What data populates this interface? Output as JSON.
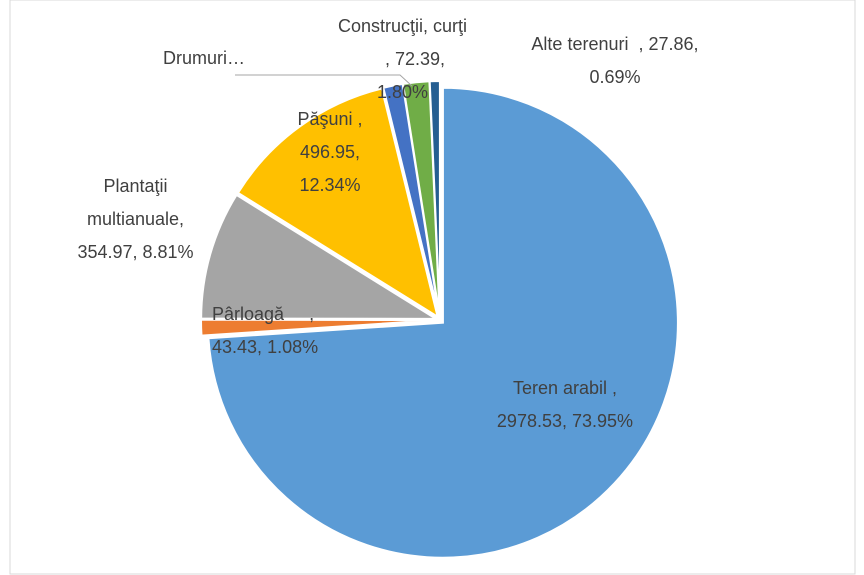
{
  "chart_data": {
    "type": "pie",
    "categories": [
      "Teren arabil",
      "Pârloagă",
      "Plantaţii multianuale",
      "Păşuni",
      "Drumuri…",
      "Construcţii, curţi",
      "Alte terenuri"
    ],
    "values": [
      2978.53,
      43.43,
      354.97,
      496.95,
      53.6,
      72.39,
      27.86
    ],
    "percent_labels": [
      "73.95%",
      "1.08%",
      "8.81%",
      "12.34%",
      null,
      "1.80%",
      "0.69%"
    ],
    "colors": [
      "#5b9bd5",
      "#ed7d31",
      "#a5a5a5",
      "#ffc000",
      "#4472c4",
      "#70ad47",
      "#255e91"
    ]
  }
}
